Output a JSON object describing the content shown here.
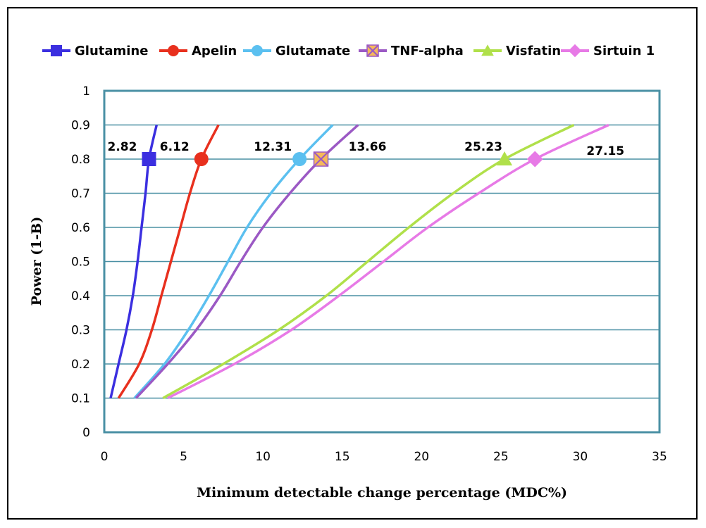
{
  "chart_data": {
    "type": "line",
    "title": "",
    "xlabel": "Minimum detectable change percentage (MDC%)",
    "ylabel": "Power (1-B)",
    "xlim": [
      0,
      35
    ],
    "ylim": [
      0,
      1
    ],
    "x_ticks": [
      "0",
      "5",
      "10",
      "15",
      "20",
      "25",
      "30",
      "35"
    ],
    "y_ticks": [
      "0",
      "0.1",
      "0.2",
      "0.3",
      "0.4",
      "0.5",
      "0.6",
      "0.7",
      "0.8",
      "0.9",
      "1"
    ],
    "grid": "horizontal",
    "legend_position": "top",
    "series": [
      {
        "name": "Glutamine",
        "color": "#3b2fe0",
        "marker": "square",
        "points": [
          [
            0.4,
            0.1
          ],
          [
            0.9,
            0.2
          ],
          [
            1.4,
            0.3
          ],
          [
            1.8,
            0.4
          ],
          [
            2.1,
            0.5
          ],
          [
            2.35,
            0.6
          ],
          [
            2.6,
            0.7
          ],
          [
            2.82,
            0.8
          ],
          [
            3.3,
            0.9
          ]
        ],
        "highlight": {
          "x": 2.82,
          "y": 0.8,
          "label": "2.82"
        }
      },
      {
        "name": "Apelin",
        "color": "#e8301e",
        "marker": "circle",
        "points": [
          [
            0.9,
            0.1
          ],
          [
            2.2,
            0.2
          ],
          [
            3.0,
            0.3
          ],
          [
            3.6,
            0.4
          ],
          [
            4.2,
            0.5
          ],
          [
            4.8,
            0.6
          ],
          [
            5.4,
            0.7
          ],
          [
            6.12,
            0.8
          ],
          [
            7.2,
            0.9
          ]
        ],
        "highlight": {
          "x": 6.12,
          "y": 0.8,
          "label": "6.12"
        }
      },
      {
        "name": "Glutamate",
        "color": "#5bc0f0",
        "marker": "circle",
        "points": [
          [
            1.9,
            0.1
          ],
          [
            3.8,
            0.2
          ],
          [
            5.3,
            0.3
          ],
          [
            6.6,
            0.4
          ],
          [
            7.8,
            0.5
          ],
          [
            9.0,
            0.6
          ],
          [
            10.5,
            0.7
          ],
          [
            12.31,
            0.8
          ],
          [
            14.4,
            0.9
          ]
        ],
        "highlight": {
          "x": 12.31,
          "y": 0.8,
          "label": "12.31"
        }
      },
      {
        "name": "TNF-alpha",
        "color": "#9b59c4",
        "marker": "x-square",
        "marker_fill": "#f5b95a",
        "points": [
          [
            2.0,
            0.1
          ],
          [
            4.0,
            0.2
          ],
          [
            5.8,
            0.3
          ],
          [
            7.3,
            0.4
          ],
          [
            8.6,
            0.5
          ],
          [
            10.0,
            0.6
          ],
          [
            11.7,
            0.7
          ],
          [
            13.66,
            0.8
          ],
          [
            16.0,
            0.9
          ]
        ],
        "highlight": {
          "x": 13.66,
          "y": 0.8,
          "label": "13.66"
        }
      },
      {
        "name": "Visfatin",
        "color": "#b0e04a",
        "marker": "triangle",
        "points": [
          [
            3.7,
            0.1
          ],
          [
            7.5,
            0.2
          ],
          [
            11.0,
            0.3
          ],
          [
            14.0,
            0.4
          ],
          [
            16.6,
            0.5
          ],
          [
            19.2,
            0.6
          ],
          [
            22.0,
            0.7
          ],
          [
            25.23,
            0.8
          ],
          [
            29.6,
            0.9
          ]
        ],
        "highlight": {
          "x": 25.23,
          "y": 0.8,
          "label": "25.23"
        }
      },
      {
        "name": "Sirtuin 1",
        "color": "#e77ae6",
        "marker": "diamond",
        "points": [
          [
            4.0,
            0.1
          ],
          [
            8.2,
            0.2
          ],
          [
            11.8,
            0.3
          ],
          [
            14.8,
            0.4
          ],
          [
            17.6,
            0.5
          ],
          [
            20.4,
            0.6
          ],
          [
            23.6,
            0.7
          ],
          [
            27.15,
            0.8
          ],
          [
            31.8,
            0.9
          ]
        ],
        "highlight": {
          "x": 27.15,
          "y": 0.8,
          "label": "27.15"
        }
      }
    ]
  }
}
